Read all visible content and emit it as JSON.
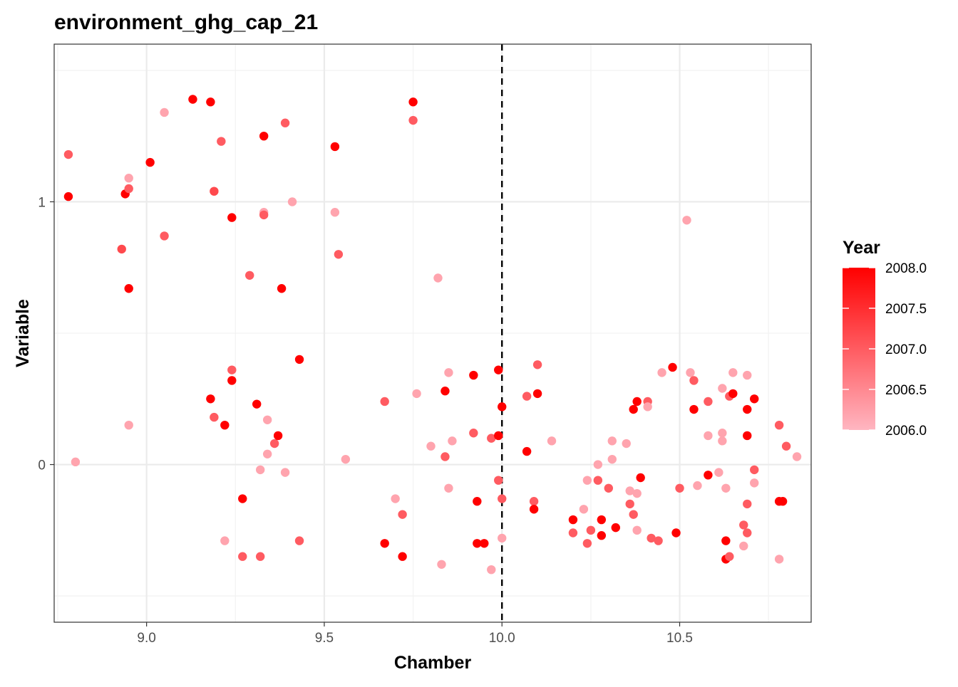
{
  "chart_data": {
    "type": "scatter",
    "title": "environment_ghg_cap_21",
    "xlabel": "Chamber",
    "ylabel": "Variable",
    "xlim": [
      8.74,
      10.87
    ],
    "ylim": [
      -0.6,
      1.6
    ],
    "x_ticks": [
      9.0,
      9.5,
      10.0,
      10.5
    ],
    "x_tick_labels": [
      "9.0",
      "9.5",
      "10.0",
      "10.5"
    ],
    "y_ticks": [
      0,
      1
    ],
    "y_tick_labels": [
      "0",
      "1"
    ],
    "reference_line": {
      "axis": "x",
      "value": 10.0,
      "style": "dashed"
    },
    "grid": true,
    "legend": {
      "title": "Year",
      "placement": "right",
      "type": "gradient",
      "range": [
        2006.0,
        2008.0
      ],
      "ticks": [
        2008.0,
        2007.5,
        2007.0,
        2006.5,
        2006.0
      ],
      "tick_labels": [
        "2008.0",
        "2007.5",
        "2007.0",
        "2006.5",
        "2006.0"
      ],
      "low_color": "#FFB6C1",
      "high_color": "#FF0000"
    },
    "points": [
      {
        "x": 8.78,
        "y": 1.18,
        "year": 2007.0
      },
      {
        "x": 8.78,
        "y": 1.02,
        "year": 2008.0
      },
      {
        "x": 8.8,
        "y": 0.01,
        "year": 2006.2
      },
      {
        "x": 8.93,
        "y": 0.82,
        "year": 2007.2
      },
      {
        "x": 8.94,
        "y": 1.03,
        "year": 2008.0
      },
      {
        "x": 8.95,
        "y": 1.05,
        "year": 2007.0
      },
      {
        "x": 8.95,
        "y": 1.09,
        "year": 2006.2
      },
      {
        "x": 8.95,
        "y": 0.67,
        "year": 2008.0
      },
      {
        "x": 8.95,
        "y": 0.15,
        "year": 2006.2
      },
      {
        "x": 9.01,
        "y": 1.15,
        "year": 2008.0
      },
      {
        "x": 9.05,
        "y": 1.34,
        "year": 2006.2
      },
      {
        "x": 9.05,
        "y": 0.87,
        "year": 2007.0
      },
      {
        "x": 9.13,
        "y": 1.39,
        "year": 2008.0
      },
      {
        "x": 9.18,
        "y": 1.38,
        "year": 2008.0
      },
      {
        "x": 9.19,
        "y": 1.04,
        "year": 2007.2
      },
      {
        "x": 9.21,
        "y": 1.23,
        "year": 2007.0
      },
      {
        "x": 9.18,
        "y": 0.25,
        "year": 2008.0
      },
      {
        "x": 9.19,
        "y": 0.18,
        "year": 2007.0
      },
      {
        "x": 9.22,
        "y": 0.15,
        "year": 2008.0
      },
      {
        "x": 9.22,
        "y": -0.29,
        "year": 2006.2
      },
      {
        "x": 9.24,
        "y": 0.94,
        "year": 2008.0
      },
      {
        "x": 9.24,
        "y": 0.36,
        "year": 2007.0
      },
      {
        "x": 9.24,
        "y": 0.32,
        "year": 2008.0
      },
      {
        "x": 9.27,
        "y": -0.35,
        "year": 2007.0
      },
      {
        "x": 9.27,
        "y": -0.13,
        "year": 2008.0
      },
      {
        "x": 9.29,
        "y": 0.72,
        "year": 2007.0
      },
      {
        "x": 9.31,
        "y": 0.23,
        "year": 2008.0
      },
      {
        "x": 9.32,
        "y": -0.02,
        "year": 2006.2
      },
      {
        "x": 9.32,
        "y": -0.35,
        "year": 2007.0
      },
      {
        "x": 9.33,
        "y": 0.96,
        "year": 2006.2
      },
      {
        "x": 9.33,
        "y": 0.95,
        "year": 2007.0
      },
      {
        "x": 9.33,
        "y": 1.25,
        "year": 2008.0
      },
      {
        "x": 9.34,
        "y": 0.17,
        "year": 2006.2
      },
      {
        "x": 9.34,
        "y": 0.04,
        "year": 2006.2
      },
      {
        "x": 9.36,
        "y": 0.08,
        "year": 2007.0
      },
      {
        "x": 9.37,
        "y": 0.11,
        "year": 2008.0
      },
      {
        "x": 9.38,
        "y": 0.67,
        "year": 2008.0
      },
      {
        "x": 9.39,
        "y": 1.3,
        "year": 2007.0
      },
      {
        "x": 9.39,
        "y": -0.03,
        "year": 2006.2
      },
      {
        "x": 9.41,
        "y": 1.0,
        "year": 2006.2
      },
      {
        "x": 9.43,
        "y": 0.4,
        "year": 2008.0
      },
      {
        "x": 9.43,
        "y": -0.29,
        "year": 2007.0
      },
      {
        "x": 9.53,
        "y": 0.96,
        "year": 2006.2
      },
      {
        "x": 9.53,
        "y": 1.21,
        "year": 2008.0
      },
      {
        "x": 9.54,
        "y": 0.8,
        "year": 2007.0
      },
      {
        "x": 9.56,
        "y": 0.02,
        "year": 2006.2
      },
      {
        "x": 9.67,
        "y": 0.24,
        "year": 2007.0
      },
      {
        "x": 9.67,
        "y": -0.3,
        "year": 2008.0
      },
      {
        "x": 9.7,
        "y": -0.13,
        "year": 2006.2
      },
      {
        "x": 9.72,
        "y": -0.19,
        "year": 2007.0
      },
      {
        "x": 9.72,
        "y": -0.35,
        "year": 2008.0
      },
      {
        "x": 9.75,
        "y": 1.38,
        "year": 2008.0
      },
      {
        "x": 9.75,
        "y": 1.31,
        "year": 2007.0
      },
      {
        "x": 9.76,
        "y": 0.27,
        "year": 2006.2
      },
      {
        "x": 9.8,
        "y": 0.07,
        "year": 2006.2
      },
      {
        "x": 9.82,
        "y": 0.71,
        "year": 2006.2
      },
      {
        "x": 9.84,
        "y": 0.28,
        "year": 2008.0
      },
      {
        "x": 9.84,
        "y": 0.03,
        "year": 2007.0
      },
      {
        "x": 9.83,
        "y": -0.38,
        "year": 2006.2
      },
      {
        "x": 9.85,
        "y": 0.35,
        "year": 2006.2
      },
      {
        "x": 9.85,
        "y": -0.09,
        "year": 2006.2
      },
      {
        "x": 9.86,
        "y": 0.09,
        "year": 2006.2
      },
      {
        "x": 9.92,
        "y": 0.34,
        "year": 2008.0
      },
      {
        "x": 9.92,
        "y": 0.12,
        "year": 2007.0
      },
      {
        "x": 9.93,
        "y": -0.14,
        "year": 2008.0
      },
      {
        "x": 9.93,
        "y": -0.3,
        "year": 2008.0
      },
      {
        "x": 9.95,
        "y": -0.3,
        "year": 2008.0
      },
      {
        "x": 9.97,
        "y": 0.1,
        "year": 2007.0
      },
      {
        "x": 9.97,
        "y": -0.4,
        "year": 2006.2
      },
      {
        "x": 9.99,
        "y": 0.36,
        "year": 2008.0
      },
      {
        "x": 9.99,
        "y": 0.11,
        "year": 2008.0
      },
      {
        "x": 9.99,
        "y": -0.06,
        "year": 2007.0
      },
      {
        "x": 10.0,
        "y": 0.22,
        "year": 2008.0
      },
      {
        "x": 10.0,
        "y": -0.13,
        "year": 2007.0
      },
      {
        "x": 10.0,
        "y": -0.28,
        "year": 2006.2
      },
      {
        "x": 10.07,
        "y": 0.26,
        "year": 2007.0
      },
      {
        "x": 10.07,
        "y": 0.05,
        "year": 2008.0
      },
      {
        "x": 10.09,
        "y": -0.14,
        "year": 2007.0
      },
      {
        "x": 10.09,
        "y": -0.17,
        "year": 2008.0
      },
      {
        "x": 10.1,
        "y": 0.38,
        "year": 2007.0
      },
      {
        "x": 10.1,
        "y": 0.27,
        "year": 2008.0
      },
      {
        "x": 10.14,
        "y": 0.09,
        "year": 2006.2
      },
      {
        "x": 10.2,
        "y": -0.21,
        "year": 2008.0
      },
      {
        "x": 10.2,
        "y": -0.26,
        "year": 2007.0
      },
      {
        "x": 10.23,
        "y": -0.17,
        "year": 2006.2
      },
      {
        "x": 10.24,
        "y": -0.06,
        "year": 2006.2
      },
      {
        "x": 10.24,
        "y": -0.3,
        "year": 2007.0
      },
      {
        "x": 10.25,
        "y": -0.25,
        "year": 2007.0
      },
      {
        "x": 10.27,
        "y": 0.0,
        "year": 2006.2
      },
      {
        "x": 10.27,
        "y": -0.06,
        "year": 2007.0
      },
      {
        "x": 10.28,
        "y": -0.21,
        "year": 2008.0
      },
      {
        "x": 10.28,
        "y": -0.27,
        "year": 2008.0
      },
      {
        "x": 10.3,
        "y": -0.09,
        "year": 2007.0
      },
      {
        "x": 10.31,
        "y": 0.09,
        "year": 2006.2
      },
      {
        "x": 10.31,
        "y": 0.02,
        "year": 2006.2
      },
      {
        "x": 10.32,
        "y": -0.24,
        "year": 2008.0
      },
      {
        "x": 10.35,
        "y": 0.08,
        "year": 2006.2
      },
      {
        "x": 10.36,
        "y": -0.1,
        "year": 2006.2
      },
      {
        "x": 10.36,
        "y": -0.15,
        "year": 2007.0
      },
      {
        "x": 10.37,
        "y": -0.19,
        "year": 2007.0
      },
      {
        "x": 10.37,
        "y": 0.21,
        "year": 2008.0
      },
      {
        "x": 10.38,
        "y": 0.24,
        "year": 2008.0
      },
      {
        "x": 10.38,
        "y": -0.11,
        "year": 2006.2
      },
      {
        "x": 10.38,
        "y": -0.25,
        "year": 2006.2
      },
      {
        "x": 10.39,
        "y": -0.05,
        "year": 2008.0
      },
      {
        "x": 10.41,
        "y": 0.24,
        "year": 2007.0
      },
      {
        "x": 10.41,
        "y": 0.22,
        "year": 2006.2
      },
      {
        "x": 10.42,
        "y": -0.28,
        "year": 2007.0
      },
      {
        "x": 10.44,
        "y": -0.29,
        "year": 2007.0
      },
      {
        "x": 10.45,
        "y": 0.35,
        "year": 2006.2
      },
      {
        "x": 10.48,
        "y": 0.37,
        "year": 2008.0
      },
      {
        "x": 10.49,
        "y": -0.26,
        "year": 2008.0
      },
      {
        "x": 10.5,
        "y": -0.09,
        "year": 2007.0
      },
      {
        "x": 10.52,
        "y": 0.93,
        "year": 2006.2
      },
      {
        "x": 10.53,
        "y": 0.35,
        "year": 2006.2
      },
      {
        "x": 10.54,
        "y": 0.32,
        "year": 2007.0
      },
      {
        "x": 10.54,
        "y": 0.21,
        "year": 2008.0
      },
      {
        "x": 10.55,
        "y": -0.08,
        "year": 2006.2
      },
      {
        "x": 10.58,
        "y": 0.24,
        "year": 2007.0
      },
      {
        "x": 10.58,
        "y": 0.11,
        "year": 2006.2
      },
      {
        "x": 10.58,
        "y": -0.04,
        "year": 2008.0
      },
      {
        "x": 10.61,
        "y": -0.03,
        "year": 2006.2
      },
      {
        "x": 10.62,
        "y": 0.09,
        "year": 2006.2
      },
      {
        "x": 10.62,
        "y": 0.12,
        "year": 2006.2
      },
      {
        "x": 10.62,
        "y": 0.29,
        "year": 2006.2
      },
      {
        "x": 10.63,
        "y": -0.09,
        "year": 2006.2
      },
      {
        "x": 10.63,
        "y": -0.29,
        "year": 2008.0
      },
      {
        "x": 10.63,
        "y": -0.36,
        "year": 2008.0
      },
      {
        "x": 10.64,
        "y": 0.26,
        "year": 2007.0
      },
      {
        "x": 10.64,
        "y": -0.35,
        "year": 2007.0
      },
      {
        "x": 10.65,
        "y": 0.35,
        "year": 2006.2
      },
      {
        "x": 10.65,
        "y": 0.27,
        "year": 2008.0
      },
      {
        "x": 10.68,
        "y": -0.31,
        "year": 2006.2
      },
      {
        "x": 10.68,
        "y": -0.23,
        "year": 2007.0
      },
      {
        "x": 10.69,
        "y": 0.34,
        "year": 2006.2
      },
      {
        "x": 10.69,
        "y": 0.21,
        "year": 2008.0
      },
      {
        "x": 10.69,
        "y": 0.11,
        "year": 2008.0
      },
      {
        "x": 10.69,
        "y": -0.15,
        "year": 2007.0
      },
      {
        "x": 10.69,
        "y": -0.26,
        "year": 2007.0
      },
      {
        "x": 10.71,
        "y": 0.25,
        "year": 2008.0
      },
      {
        "x": 10.71,
        "y": -0.02,
        "year": 2007.0
      },
      {
        "x": 10.71,
        "y": -0.07,
        "year": 2006.2
      },
      {
        "x": 10.78,
        "y": 0.15,
        "year": 2007.0
      },
      {
        "x": 10.78,
        "y": -0.14,
        "year": 2008.0
      },
      {
        "x": 10.78,
        "y": -0.36,
        "year": 2006.2
      },
      {
        "x": 10.79,
        "y": -0.14,
        "year": 2008.0
      },
      {
        "x": 10.8,
        "y": 0.07,
        "year": 2007.0
      },
      {
        "x": 10.83,
        "y": 0.03,
        "year": 2006.2
      }
    ]
  }
}
